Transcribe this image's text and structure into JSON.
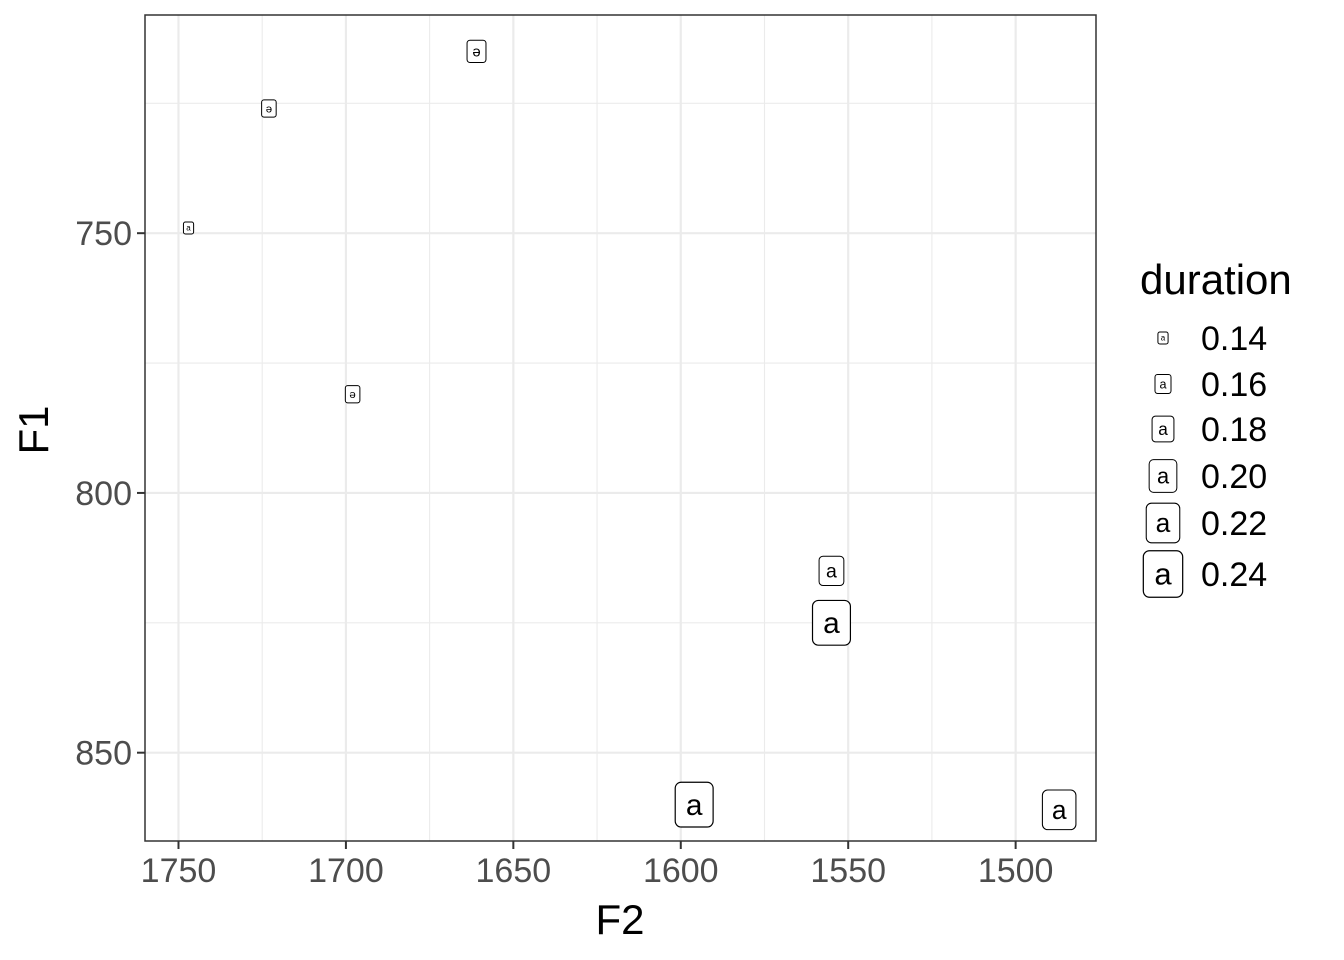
{
  "chart_data": {
    "type": "scatter",
    "mark": "label",
    "xlabel": "F2",
    "ylabel": "F1",
    "x_reversed": true,
    "y_reversed": true,
    "xlim": [
      1760,
      1476
    ],
    "ylim": [
      708,
      867
    ],
    "xticks": [
      1750,
      1700,
      1650,
      1600,
      1550,
      1500
    ],
    "yticks": [
      750,
      800,
      850
    ],
    "grid": true,
    "legend": {
      "title": "duration",
      "position": "right",
      "entries": [
        {
          "label": "0.14",
          "symbol": "a",
          "value": 0.14
        },
        {
          "label": "0.16",
          "symbol": "a",
          "value": 0.16
        },
        {
          "label": "0.18",
          "symbol": "a",
          "value": 0.18
        },
        {
          "label": "0.20",
          "symbol": "a",
          "value": 0.2
        },
        {
          "label": "0.22",
          "symbol": "a",
          "value": 0.22
        },
        {
          "label": "0.24",
          "symbol": "a",
          "value": 0.24
        }
      ]
    },
    "points": [
      {
        "label": "ə",
        "F2": 1661,
        "F1": 715,
        "duration": 0.17
      },
      {
        "label": "ə",
        "F2": 1723,
        "F1": 726,
        "duration": 0.155
      },
      {
        "label": "a",
        "F2": 1747,
        "F1": 749,
        "duration": 0.14
      },
      {
        "label": "ə",
        "F2": 1698,
        "F1": 781,
        "duration": 0.155
      },
      {
        "label": "a",
        "F2": 1555,
        "F1": 815,
        "duration": 0.19
      },
      {
        "label": "a",
        "F2": 1555,
        "F1": 825,
        "duration": 0.235
      },
      {
        "label": "a",
        "F2": 1596,
        "F1": 860,
        "duration": 0.235
      },
      {
        "label": "a",
        "F2": 1487,
        "F1": 861,
        "duration": 0.22
      }
    ]
  }
}
